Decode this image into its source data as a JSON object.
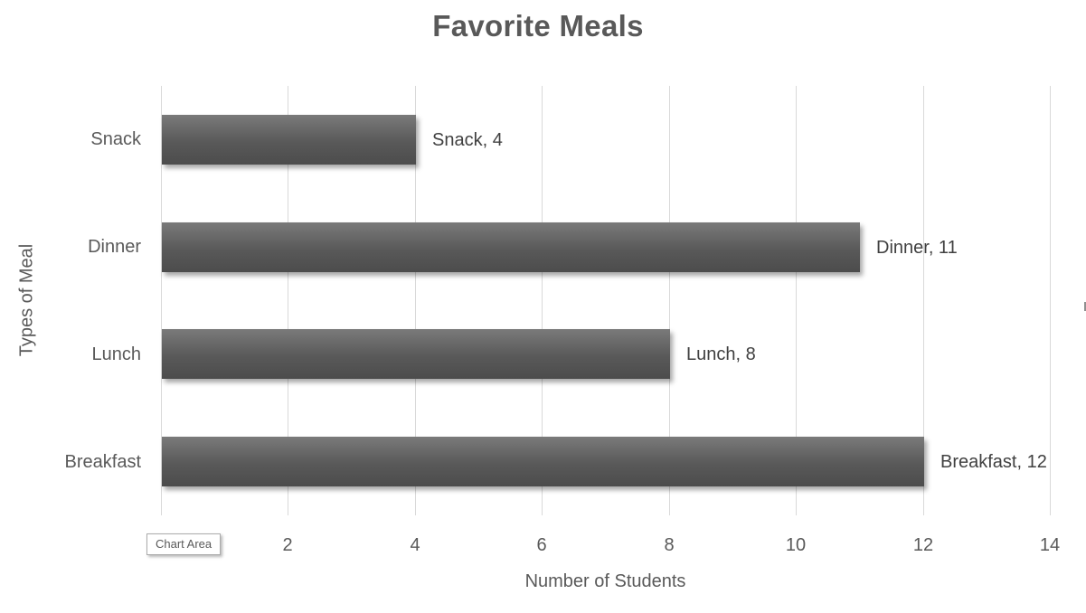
{
  "tooltip": {
    "label": "Chart Area"
  },
  "chart_data": {
    "type": "bar",
    "orientation": "horizontal",
    "title": "Favorite Meals",
    "xlabel": "Number of Students",
    "ylabel": "Types of Meal",
    "xlim": [
      0,
      14
    ],
    "xticks": [
      2,
      4,
      6,
      8,
      10,
      12,
      14
    ],
    "grid": true,
    "legend": false,
    "categories": [
      "Snack",
      "Dinner",
      "Lunch",
      "Breakfast"
    ],
    "values": [
      4,
      11,
      8,
      12
    ],
    "data_labels": [
      "Snack, 4",
      "Dinner, 11",
      "Lunch, 8",
      "Breakfast, 12"
    ],
    "colors": {
      "bar_top": "#7a7a7a",
      "bar_mid": "#595959",
      "bar_bottom": "#4c4c4c",
      "gridline": "#d9d9d9",
      "axis_text": "#595959",
      "data_label_text": "#404040",
      "title_text": "#595959"
    }
  }
}
